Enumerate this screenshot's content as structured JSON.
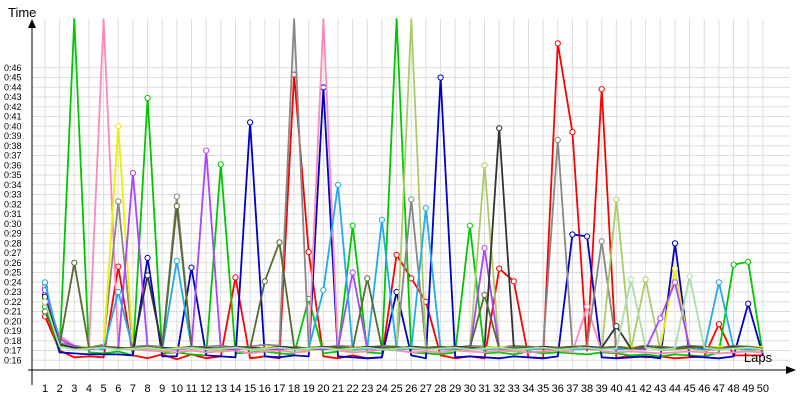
{
  "chart_data": {
    "type": "line",
    "xlabel": "Laps",
    "ylabel": "Time",
    "grid": true,
    "legend": "none",
    "x": [
      1,
      2,
      3,
      4,
      5,
      6,
      7,
      8,
      9,
      10,
      11,
      12,
      13,
      14,
      15,
      16,
      17,
      18,
      19,
      20,
      21,
      22,
      23,
      24,
      25,
      26,
      27,
      28,
      29,
      30,
      31,
      32,
      33,
      34,
      35,
      36,
      37,
      38,
      39,
      40,
      41,
      42,
      43,
      44,
      45,
      46,
      47,
      48,
      49,
      50
    ],
    "xticks": [
      "1",
      "2",
      "3",
      "4",
      "5",
      "6",
      "7",
      "8",
      "9",
      "10",
      "11",
      "12",
      "13",
      "14",
      "15",
      "16",
      "17",
      "18",
      "19",
      "20",
      "21",
      "22",
      "23",
      "24",
      "25",
      "26",
      "27",
      "28",
      "29",
      "30",
      "31",
      "32",
      "33",
      "34",
      "35",
      "36",
      "37",
      "38",
      "39",
      "40",
      "41",
      "42",
      "43",
      "44",
      "45",
      "46",
      "47",
      "48",
      "49",
      "50"
    ],
    "yticks": [
      "0:16",
      "0:17",
      "0:18",
      "0:19",
      "0:20",
      "0:21",
      "0:22",
      "0:23",
      "0:24",
      "0:25",
      "0:26",
      "0:27",
      "0:28",
      "0:29",
      "0:30",
      "0:31",
      "0:32",
      "0:33",
      "0:34",
      "0:35",
      "0:36",
      "0:37",
      "0:38",
      "0:39",
      "0:40",
      "0:41",
      "0:42",
      "0:43",
      "0:44",
      "0:45",
      "0:46"
    ],
    "ylim": [
      15,
      51
    ],
    "series": [
      {
        "color": "#ff0000",
        "values": [
          20.5,
          17,
          16.3,
          16.4,
          16.3,
          25.6,
          16.5,
          16.2,
          16.6,
          16.1,
          16.6,
          16.2,
          16.4,
          24.5,
          16.2,
          16.4,
          16.2,
          45.3,
          27.1,
          16.4,
          16.2,
          16.5,
          16.2,
          16.3,
          26.8,
          24.4,
          22,
          16.5,
          16.2,
          16.4,
          16.2,
          25.4,
          24.1,
          16.3,
          16.2,
          48.5,
          39.4,
          17,
          43.8,
          16.2,
          16.5,
          16.3,
          16.4,
          16.2,
          16.3,
          16.4,
          19.7,
          16.5,
          16.5,
          16.5
        ]
      },
      {
        "color": "#00c800",
        "values": [
          21.5,
          16.8,
          60,
          16.8,
          16.7,
          16.9,
          16.5,
          42.9,
          16.7,
          16.8,
          16.6,
          16.5,
          36.1,
          16.7,
          16.8,
          16.9,
          16.7,
          16.6,
          22.3,
          16.7,
          16.9,
          29.8,
          16.8,
          16.7,
          55,
          16.8,
          16.7,
          16.6,
          16.8,
          29.8,
          16.7,
          16.8,
          16.6,
          16.9,
          16.7,
          16.8,
          16.7,
          16.6,
          16.8,
          16.7,
          16.5,
          16.6,
          16.4,
          16.6,
          16.5,
          16.4,
          16.8,
          25.8,
          26.1,
          16.6
        ]
      },
      {
        "color": "#0000c8",
        "values": [
          22.7,
          16.8,
          16.7,
          16.6,
          16.6,
          16.6,
          16.5,
          26.5,
          16.4,
          16.4,
          25.5,
          16.5,
          16.4,
          16.3,
          40.4,
          16.4,
          16.3,
          16.5,
          16.4,
          44,
          16.4,
          16.3,
          16.2,
          16.3,
          23,
          16.5,
          16.2,
          45,
          16.3,
          16.4,
          16.3,
          16.2,
          16.4,
          16.3,
          16.2,
          16.4,
          28.9,
          28.7,
          16.3,
          16.2,
          16.3,
          16.4,
          16.2,
          28,
          16.4,
          16.3,
          16.2,
          16.4,
          21.8,
          16.5
        ]
      },
      {
        "color": "#ff88bb",
        "values": [
          21.9,
          18.5,
          17.5,
          17.2,
          60,
          17.3,
          17.1,
          17,
          16.9,
          16.8,
          17,
          16.8,
          16.9,
          17,
          16.7,
          16.9,
          17,
          16.8,
          16.9,
          60,
          17,
          16.8,
          16.9,
          17.1,
          17,
          16.8,
          16.9,
          16.8,
          17,
          16.9,
          16.8,
          17,
          16.9,
          16.8,
          16.9,
          17,
          16.8,
          21.5,
          16.9,
          16.8,
          16.9,
          16.8,
          16.7,
          16.8,
          16.9,
          16.8,
          16.7,
          16.8,
          16.9,
          16.8
        ]
      },
      {
        "color": "#888888",
        "values": [
          23.5,
          17.8,
          17.5,
          17.3,
          17.6,
          32.3,
          17.4,
          17.5,
          17.4,
          32.8,
          17.3,
          17.4,
          17.5,
          17.3,
          17.4,
          17.6,
          17.5,
          60,
          17.4,
          17.3,
          17.5,
          17.4,
          17.3,
          17.5,
          17.4,
          32.5,
          17.3,
          17.4,
          17.3,
          17.5,
          17.4,
          17.3,
          17.5,
          17.4,
          17.3,
          38.6,
          17.4,
          17.5,
          28.2,
          17.4,
          17.3,
          17.5,
          17.4,
          17.3,
          17.5,
          17.4,
          17.3,
          17.5,
          17.4,
          17.3
        ]
      },
      {
        "color": "#aacc66",
        "values": [
          23.9,
          17.5,
          17.2,
          17.1,
          17.3,
          17.2,
          17.1,
          17.2,
          17,
          17.1,
          17.2,
          17.1,
          17,
          17.2,
          17.1,
          17,
          17.2,
          17.1,
          17,
          17.2,
          17.1,
          17,
          17.2,
          17.1,
          17,
          60,
          17.1,
          17.2,
          17,
          17.1,
          36,
          17.2,
          17,
          17.1,
          17.2,
          17,
          17.1,
          17.2,
          17,
          32.5,
          17.1,
          24.3,
          17,
          17.1,
          17.2,
          17,
          17.1,
          17.2,
          17,
          17.1
        ]
      },
      {
        "color": "#eeee00",
        "values": [
          22.3,
          17.5,
          17.3,
          17.4,
          17.2,
          40,
          17.3,
          17.4,
          17.2,
          17.3,
          17.4,
          17.2,
          17.3,
          17.4,
          17.2,
          17.3,
          17.4,
          17.2,
          17.3,
          17.4,
          17.2,
          17.3,
          17.4,
          17.2,
          17.3,
          17.4,
          17.2,
          17.3,
          17.4,
          17.2,
          17.3,
          17.4,
          17.2,
          17.3,
          17.4,
          17.2,
          17.3,
          17.4,
          17.2,
          17.3,
          17.4,
          17.2,
          17.3,
          25.4,
          17.2,
          17.3,
          17.4,
          17.2,
          17.3,
          17.4
        ]
      },
      {
        "color": "#aa44ff",
        "values": [
          23.2,
          18.2,
          17.4,
          17.1,
          17.3,
          17.2,
          35.2,
          17.3,
          17.2,
          17.1,
          17.3,
          37.5,
          17.2,
          17.1,
          17.3,
          17.2,
          17.1,
          17.3,
          17.2,
          17.1,
          17.3,
          25,
          17.2,
          17.1,
          17.3,
          17.2,
          17.1,
          17.3,
          17.2,
          17.1,
          27.5,
          17.2,
          17.1,
          17.3,
          17.2,
          17.1,
          17.3,
          17.2,
          17.1,
          17.3,
          17.2,
          17.1,
          20.3,
          24,
          17.3,
          17.2,
          17.1,
          17.3,
          17.2,
          17.1
        ]
      },
      {
        "color": "#22aaee",
        "values": [
          24,
          17.7,
          17.2,
          17.3,
          17.1,
          23,
          17.2,
          17.3,
          17.1,
          26.2,
          17.3,
          17.1,
          17.2,
          17.3,
          17.1,
          17.2,
          17.3,
          17.1,
          17.2,
          23.2,
          34,
          17.1,
          17.2,
          30.4,
          17.1,
          17.2,
          31.6,
          17.1,
          17.2,
          17.3,
          17.1,
          17.2,
          17.3,
          17.1,
          17.2,
          17.3,
          17.1,
          17.2,
          17.3,
          17.1,
          17.2,
          17.3,
          17.1,
          17.2,
          17.3,
          17.1,
          24,
          17.3,
          17.1,
          17.2
        ]
      },
      {
        "color": "#333333",
        "values": [
          22.5,
          17.6,
          17.3,
          17.2,
          17.4,
          17.3,
          17.2,
          24.7,
          17.3,
          17.2,
          17.4,
          17.3,
          17.2,
          17.4,
          17.3,
          17.2,
          17.4,
          17.3,
          17.2,
          17.4,
          17.3,
          17.2,
          17.4,
          17.3,
          17.2,
          17.4,
          17.3,
          17.2,
          17.4,
          17.3,
          17.2,
          39.8,
          17.3,
          17.2,
          17.4,
          17.3,
          17.2,
          17.4,
          17.3,
          19.5,
          17.2,
          17.4,
          17.3,
          17.2,
          17.4,
          17.3,
          17.2,
          17.4,
          17.3,
          17.2
        ]
      },
      {
        "color": "#556b2f",
        "values": [
          21,
          17.5,
          26,
          17.3,
          17.4,
          17.2,
          17.3,
          17.4,
          17.2,
          31.8,
          17.4,
          17.2,
          17.3,
          17.4,
          17.2,
          24.1,
          28.1,
          17.4,
          17.2,
          17.3,
          17.4,
          17.2,
          24.4,
          17.3,
          17.4,
          17.2,
          17.3,
          17.4,
          17.2,
          17.3,
          22.7,
          17.2,
          17.3,
          17.4,
          17.2,
          17.3,
          17.4,
          17.2,
          17.3,
          17.4,
          17.2,
          17.3,
          17.4,
          17.2,
          17.3,
          17.4,
          17.2,
          17.3,
          17.4,
          17.2
        ]
      },
      {
        "color": "#aaddaa",
        "values": [
          22,
          17.4,
          17.1,
          17.2,
          17.3,
          17.1,
          17.2,
          17.3,
          17.1,
          17.2,
          17.3,
          17.1,
          17.2,
          17.3,
          17.1,
          17.2,
          17.3,
          17.1,
          17.2,
          17.3,
          17.1,
          17.2,
          17.3,
          17.1,
          17.2,
          17.3,
          17.1,
          17.2,
          17.3,
          17.1,
          17.2,
          17.3,
          17.1,
          17.2,
          17.3,
          17.1,
          17.2,
          17.3,
          17.1,
          17.2,
          24.3,
          17.3,
          17.1,
          17.2,
          24.6,
          17.3,
          17.1,
          17.2,
          17.3,
          17.1
        ]
      }
    ]
  }
}
